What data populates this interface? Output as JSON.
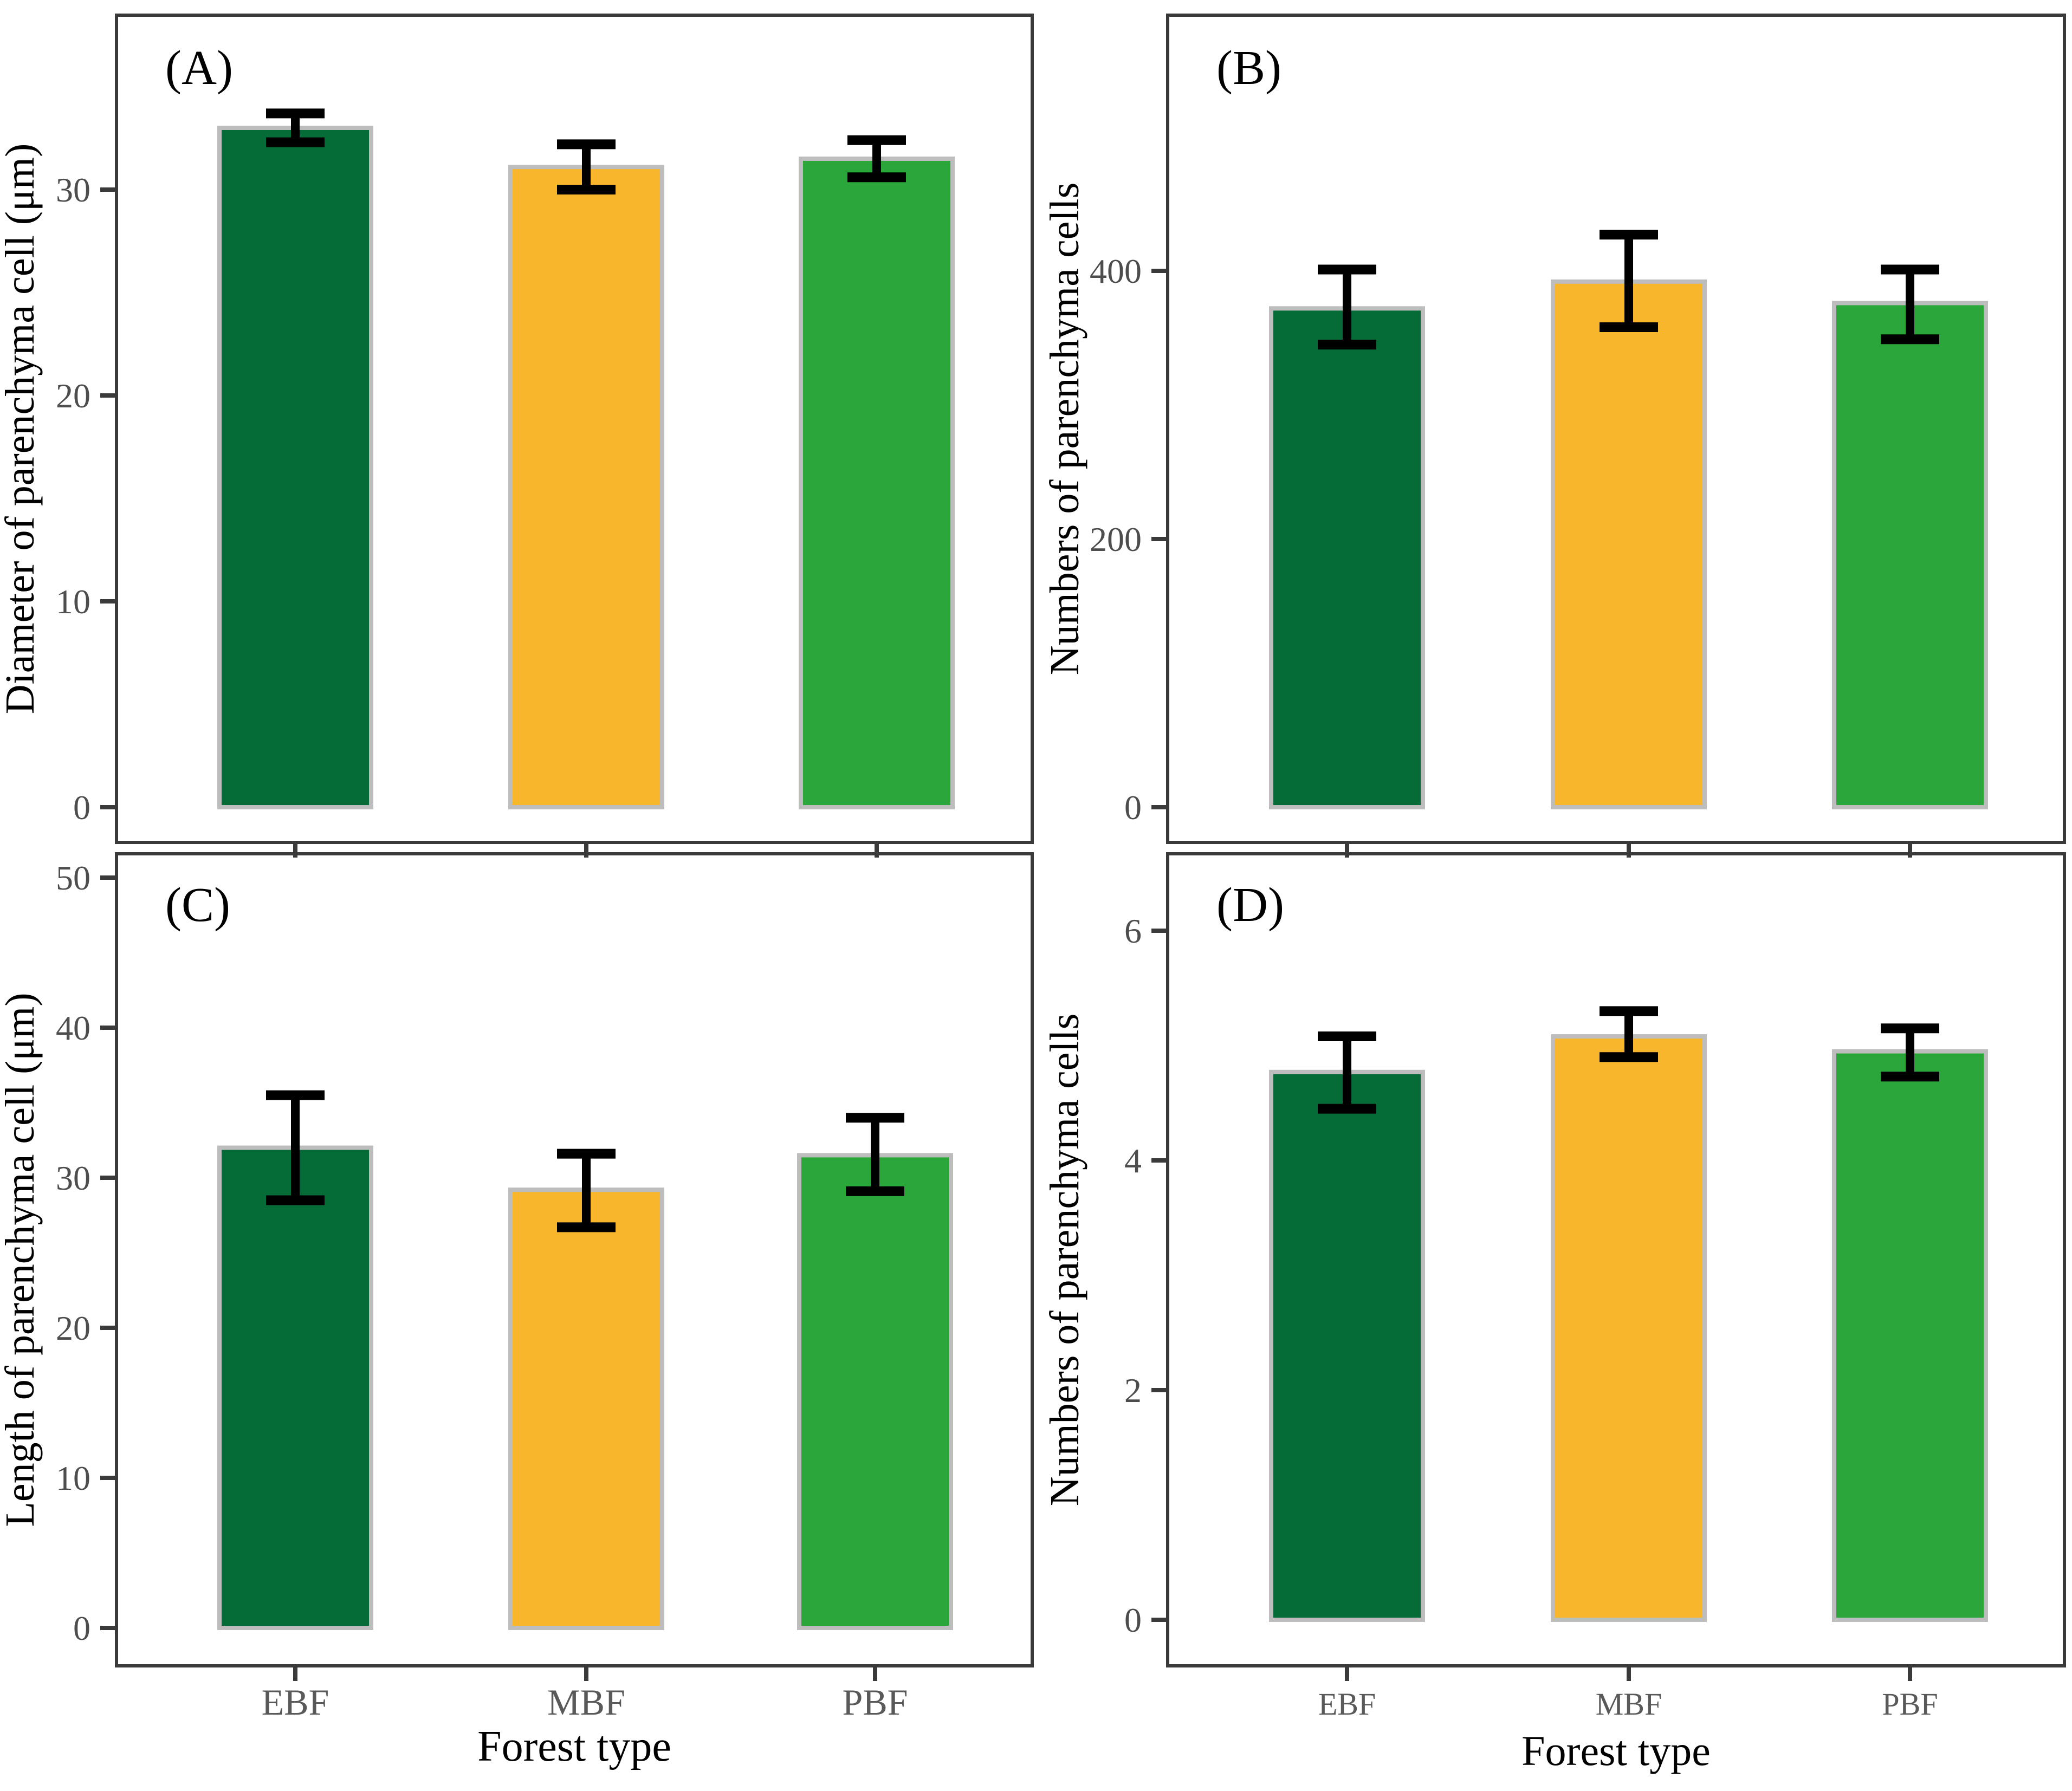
{
  "figure": {
    "x_axis_title": "Forest type",
    "categories": [
      "EBF",
      "MBF",
      "PBF"
    ]
  },
  "style": {
    "bar_colors": [
      "#056b37",
      "#f8b62c",
      "#2aa63a"
    ],
    "bar_border_color": "#bdbdbd",
    "frame_color": "#3a3a3a",
    "tick_color": "#3a3a3a",
    "tick_label_color": "#4d4d4d",
    "category_label_color": "#595959",
    "axis_title_color": "#000000",
    "panel_letter_color": "#000000",
    "error_bar_color": "#000000",
    "background": "#ffffff"
  },
  "chart_data": [
    {
      "type": "bar",
      "panel_label": "(A)",
      "ylabel": "Diameter of parenchyma cell (μm)",
      "xlabel": "",
      "categories": [
        "EBF",
        "MBF",
        "PBF"
      ],
      "values": [
        33.0,
        31.1,
        31.5
      ],
      "error_low": [
        32.3,
        30.0,
        30.6
      ],
      "error_high": [
        33.7,
        32.2,
        32.4
      ],
      "yticks": [
        0,
        10,
        20,
        30
      ],
      "ylim": [
        0,
        38.5
      ],
      "show_x_labels": false,
      "legend": "none",
      "grid": false
    },
    {
      "type": "bar",
      "panel_label": "(B)",
      "ylabel": "Numbers of parenchyma cells",
      "xlabel": "",
      "categories": [
        "EBF",
        "MBF",
        "PBF"
      ],
      "values": [
        372,
        392,
        376
      ],
      "error_low": [
        345,
        358,
        349
      ],
      "error_high": [
        401,
        427,
        401
      ],
      "yticks": [
        0,
        200,
        400
      ],
      "ylim": [
        0,
        590
      ],
      "show_x_labels": false,
      "legend": "none",
      "grid": false
    },
    {
      "type": "bar",
      "panel_label": "(C)",
      "ylabel": "Length of parenchyma cell  (μm)",
      "xlabel": "Forest type",
      "categories": [
        "EBF",
        "MBF",
        "PBF"
      ],
      "values": [
        32.0,
        29.2,
        31.5
      ],
      "error_low": [
        28.5,
        26.7,
        29.1
      ],
      "error_high": [
        35.5,
        31.6,
        34.0
      ],
      "yticks": [
        0,
        10,
        20,
        30,
        40,
        50
      ],
      "ylim": [
        0,
        51.5
      ],
      "show_x_labels": true,
      "legend": "none",
      "grid": false
    },
    {
      "type": "bar",
      "panel_label": "(D)",
      "ylabel": "Numbers of parenchyma cells",
      "xlabel": "Forest type",
      "categories": [
        "EBF",
        "MBF",
        "PBF"
      ],
      "values": [
        4.77,
        5.08,
        4.95
      ],
      "error_low": [
        4.45,
        4.9,
        4.73
      ],
      "error_high": [
        5.08,
        5.3,
        5.15
      ],
      "yticks": [
        0,
        2,
        4,
        6
      ],
      "ylim": [
        0,
        6.7
      ],
      "show_x_labels": true,
      "legend": "none",
      "grid": false
    }
  ]
}
